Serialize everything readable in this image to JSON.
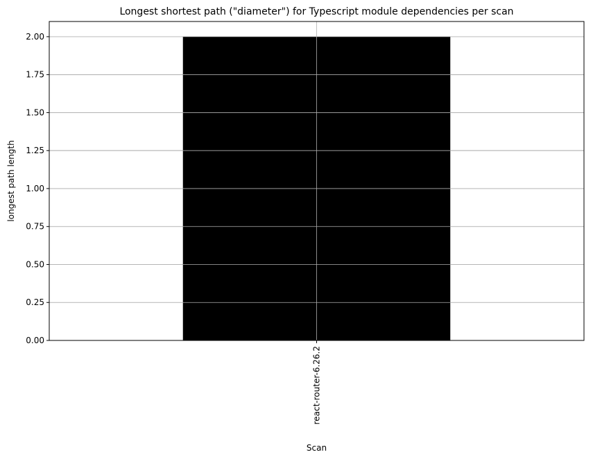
{
  "chart_data": {
    "type": "bar",
    "title": "Longest shortest path (\"diameter\") for Typescript module dependencies per scan",
    "xlabel": "Scan",
    "ylabel": "longest path length",
    "categories": [
      "react-router-6.26.2"
    ],
    "values": [
      2
    ],
    "ylim": [
      0,
      2.1
    ],
    "yticks": [
      0,
      0.25,
      0.5,
      0.75,
      1,
      1.25,
      1.5,
      1.75,
      2
    ],
    "ytick_labels": [
      "0.00",
      "0.25",
      "0.50",
      "0.75",
      "1.00",
      "1.25",
      "1.50",
      "1.75",
      "2.00"
    ],
    "grid": true,
    "bar_color": "#000000",
    "grid_color": "#b0b0b0"
  }
}
